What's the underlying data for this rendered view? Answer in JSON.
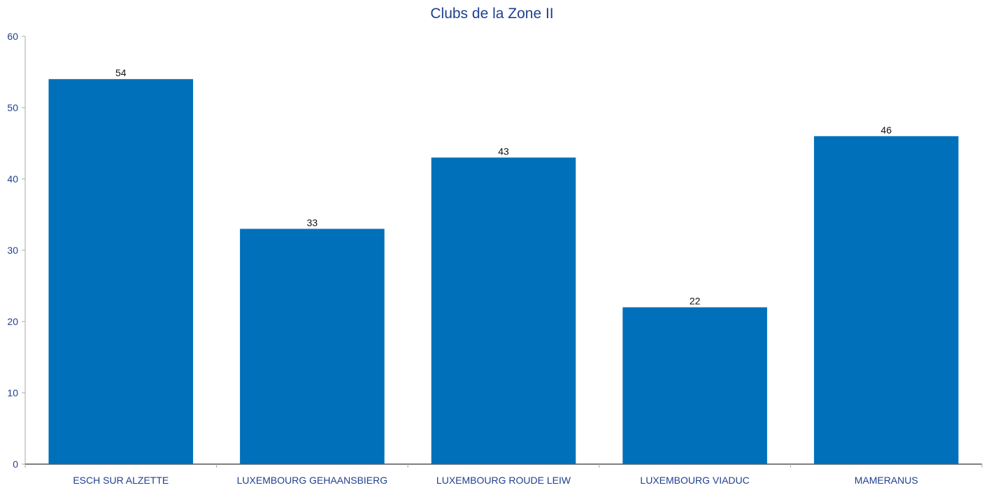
{
  "chart_data": {
    "type": "bar",
    "title": "Clubs de la Zone II",
    "categories": [
      "ESCH SUR ALZETTE",
      "LUXEMBOURG GEHAANSBIERG",
      "LUXEMBOURG ROUDE LEIW",
      "LUXEMBOURG VIADUC",
      "MAMERANUS"
    ],
    "values": [
      54,
      33,
      43,
      22,
      46
    ],
    "ylim": [
      0,
      60
    ],
    "yticks": [
      0,
      10,
      20,
      30,
      40,
      50,
      60
    ],
    "data_labels": true,
    "grid": false,
    "legend": "none",
    "colors": {
      "bar": "#0070bb",
      "text": "#1f3f8f",
      "axis": "#aaaaaa"
    }
  }
}
